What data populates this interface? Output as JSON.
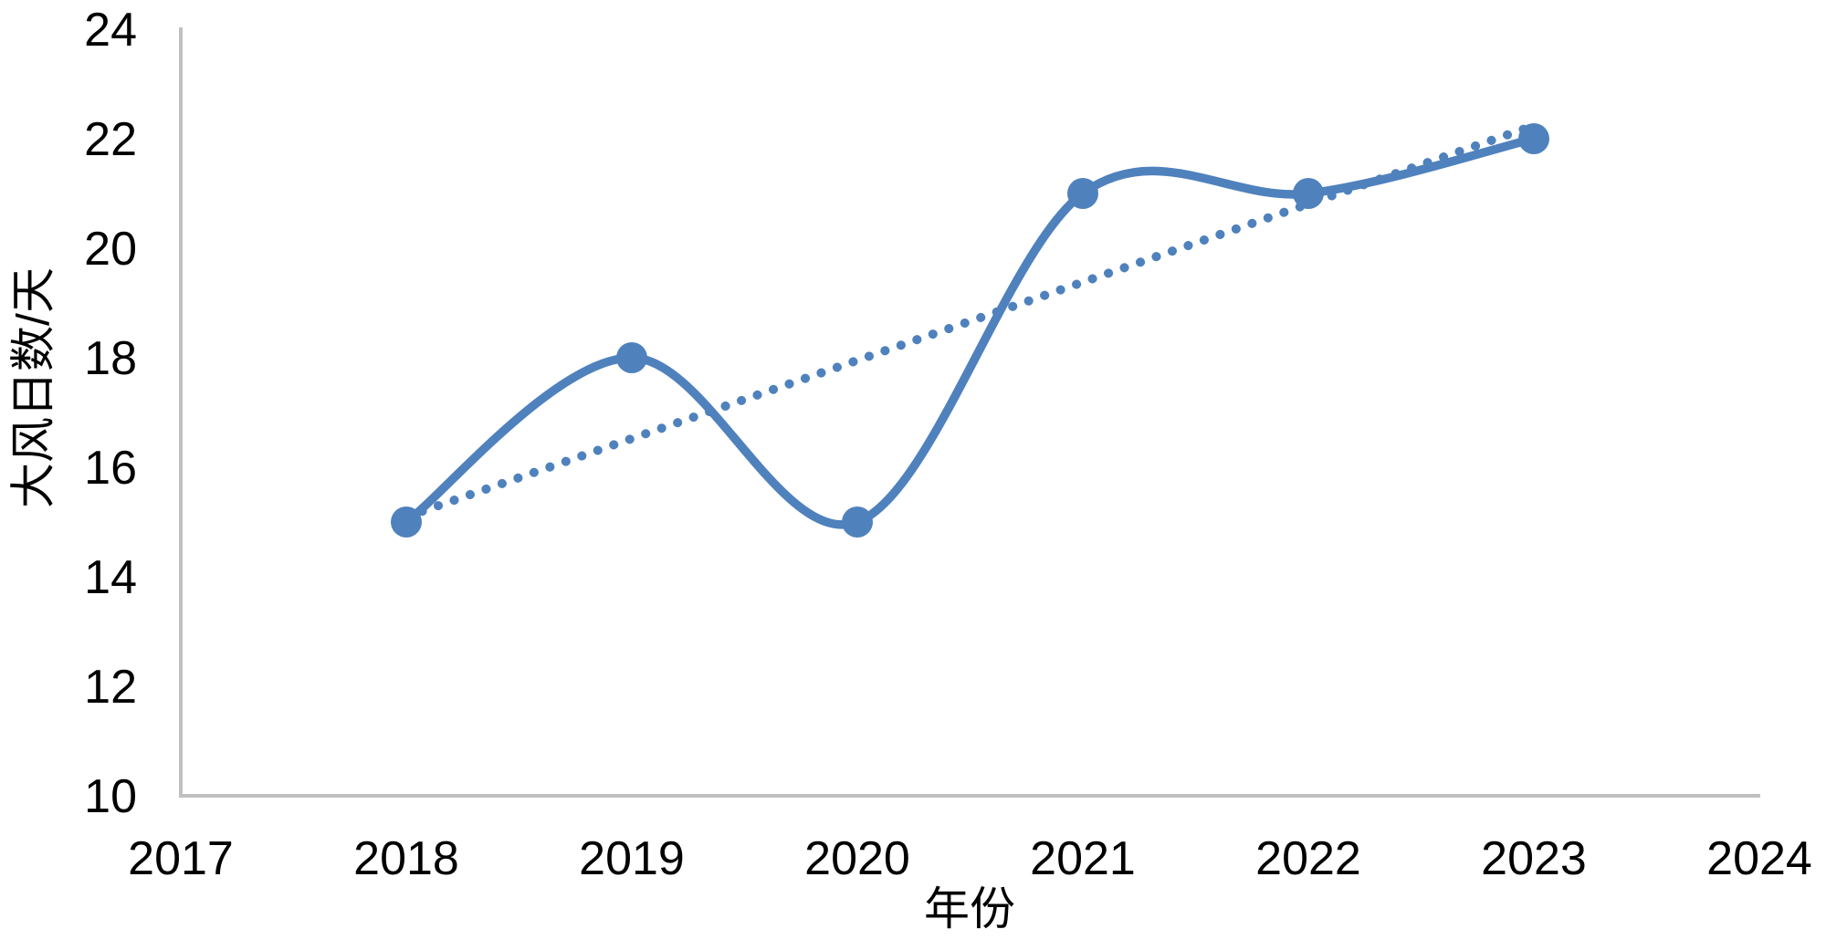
{
  "chart_data": {
    "type": "line",
    "title": "",
    "xlabel": "年份",
    "ylabel": "大风日数/天",
    "x": [
      2018,
      2019,
      2020,
      2021,
      2022,
      2023
    ],
    "series": [
      {
        "values": [
          15,
          18,
          15,
          21,
          21,
          22
        ],
        "color": "#4F81BD",
        "line_style": "smooth",
        "markers": "filled-circle"
      }
    ],
    "trendline": {
      "type": "linear",
      "style": "dotted",
      "color": "#4F81BD",
      "x_start": 2018,
      "x_end": 2023,
      "y_start": 15.1,
      "y_end": 22.24
    },
    "x_ticks": [
      "2017",
      "2018",
      "2019",
      "2020",
      "2021",
      "2022",
      "2023",
      "2024"
    ],
    "y_ticks": [
      "10",
      "12",
      "14",
      "16",
      "18",
      "20",
      "22",
      "24"
    ],
    "xlim": [
      2017,
      2024
    ],
    "ylim": [
      10,
      24
    ],
    "grid": false,
    "legend": false,
    "axis_color": "#C0C0C0",
    "text_color": "#000000",
    "background_color": "#FFFFFF"
  }
}
